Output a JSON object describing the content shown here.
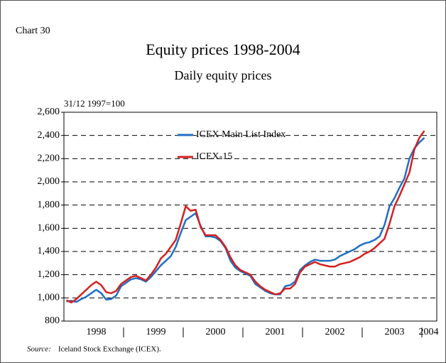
{
  "chart_data": {
    "type": "line",
    "chart_number": "Chart 30",
    "title": "Equity prices 1998-2004",
    "subtitle": "Daily equity prices",
    "y_unit_label": "31/12 1997=100",
    "source_label": "Source:",
    "source": "Iceland Stock Exchange (ICEX).",
    "categories": [
      null,
      null,
      null,
      null,
      null,
      null,
      "1998",
      null,
      null,
      null,
      null,
      null,
      null,
      null,
      null,
      null,
      null,
      null,
      "1999",
      null,
      null,
      null,
      null,
      null,
      null,
      null,
      null,
      null,
      null,
      null,
      "2000",
      null,
      null,
      null,
      null,
      null,
      null,
      null,
      null,
      null,
      null,
      null,
      "2001",
      null,
      null,
      null,
      null,
      null,
      null,
      null,
      null,
      null,
      null,
      null,
      "2002",
      null,
      null,
      null,
      null,
      null,
      null,
      null,
      null,
      null,
      null,
      null,
      "2003",
      null,
      null,
      null,
      null,
      null,
      "2004"
    ],
    "series": [
      {
        "name": "ICEX Main List Index",
        "color": "#1f6fc4",
        "values": [
          970,
          975,
          965,
          990,
          1010,
          1040,
          1070,
          1040,
          985,
          990,
          1020,
          1100,
          1130,
          1160,
          1170,
          1160,
          1140,
          1180,
          1230,
          1280,
          1320,
          1360,
          1440,
          1560,
          1670,
          1700,
          1730,
          1620,
          1530,
          1530,
          1520,
          1490,
          1430,
          1320,
          1260,
          1230,
          1210,
          1190,
          1120,
          1090,
          1060,
          1040,
          1030,
          1030,
          1100,
          1110,
          1140,
          1240,
          1280,
          1310,
          1330,
          1320,
          1320,
          1320,
          1330,
          1360,
          1380,
          1400,
          1420,
          1450,
          1470,
          1480,
          1500,
          1530,
          1630,
          1790,
          1860,
          1950,
          2030,
          2200,
          2290,
          2340,
          2380
        ]
      },
      {
        "name": "ICEX-15",
        "color": "#d42020",
        "values": [
          980,
          960,
          990,
          1030,
          1070,
          1110,
          1140,
          1110,
          1050,
          1040,
          1060,
          1120,
          1150,
          1180,
          1190,
          1170,
          1150,
          1200,
          1260,
          1340,
          1380,
          1440,
          1500,
          1640,
          1790,
          1750,
          1760,
          1610,
          1540,
          1540,
          1540,
          1500,
          1440,
          1350,
          1280,
          1240,
          1220,
          1200,
          1140,
          1100,
          1070,
          1050,
          1030,
          1040,
          1080,
          1080,
          1120,
          1220,
          1270,
          1290,
          1310,
          1290,
          1280,
          1270,
          1270,
          1290,
          1300,
          1310,
          1330,
          1350,
          1380,
          1400,
          1430,
          1470,
          1510,
          1640,
          1790,
          1880,
          1980,
          2080,
          2280,
          2380,
          2440
        ]
      }
    ],
    "ylim": [
      800,
      2600
    ],
    "yticks": [
      800,
      {
        "value": 1000,
        "label": "1,000"
      },
      {
        "value": 1200,
        "label": "1,200"
      },
      {
        "value": 1400,
        "label": "1,400"
      },
      {
        "value": 1600,
        "label": "1,600"
      },
      {
        "value": 1800,
        "label": "1,800"
      },
      {
        "value": 2000,
        "label": "2,000"
      },
      {
        "value": 2200,
        "label": "2,200"
      },
      {
        "value": 2400,
        "label": "2,400"
      },
      {
        "value": 2600,
        "label": "2,600"
      }
    ],
    "grid": true
  }
}
